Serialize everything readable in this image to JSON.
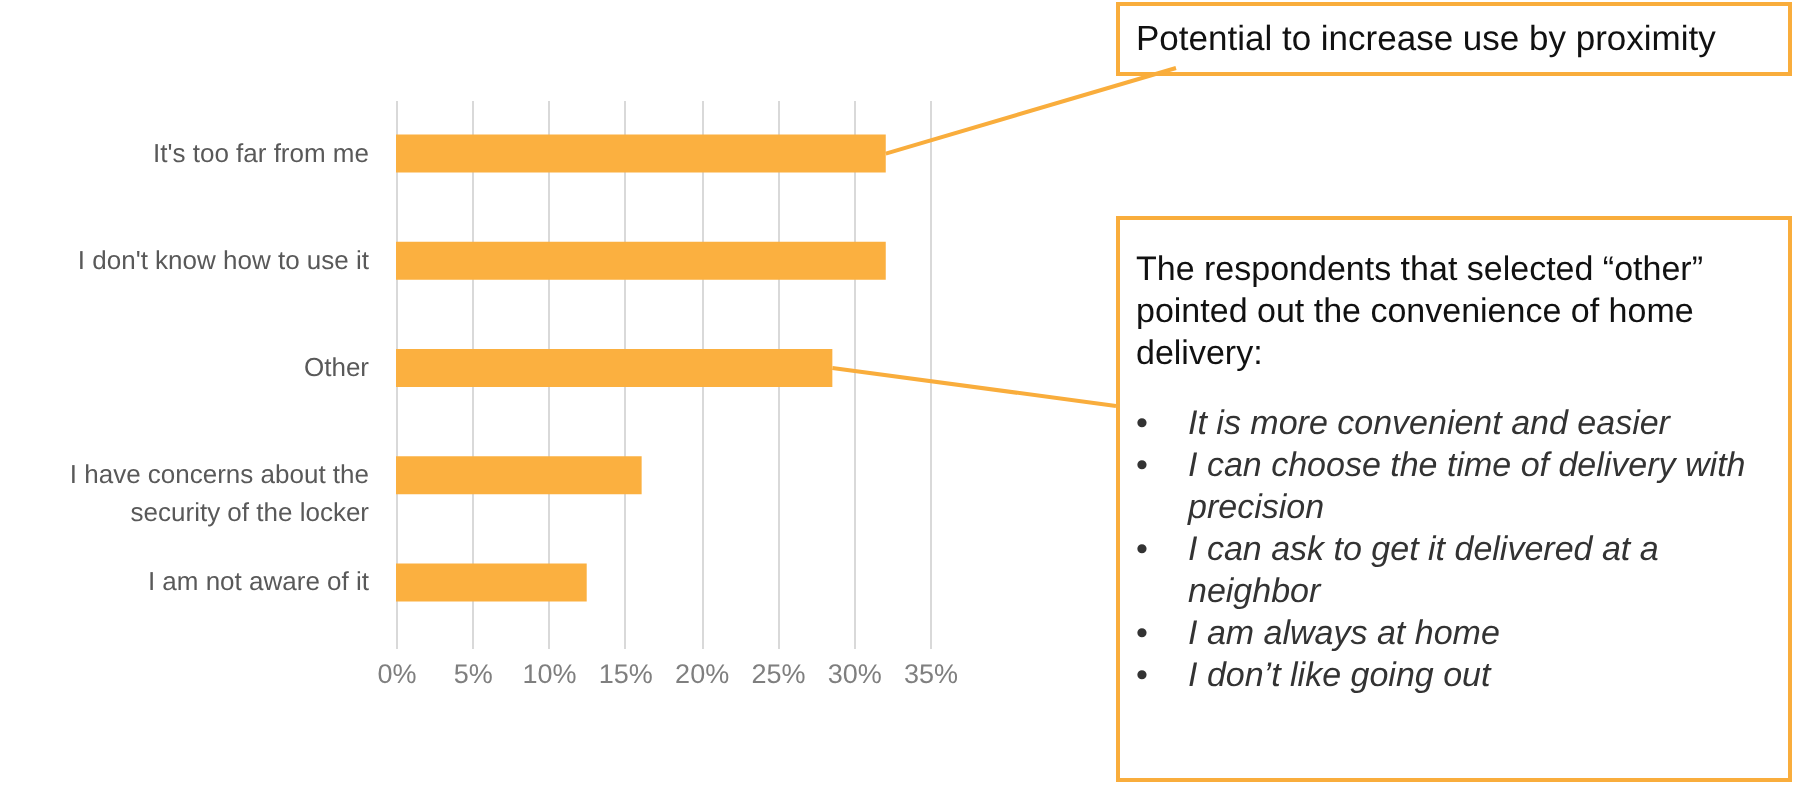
{
  "chart_data": {
    "type": "bar",
    "orientation": "horizontal",
    "categories": [
      "It's too far from me",
      "I don't know how to use it",
      "Other",
      "I have concerns about the security of the locker",
      "I am not aware of it"
    ],
    "values": [
      32.1,
      32.1,
      28.6,
      16.1,
      12.5
    ],
    "color": "#fbb040",
    "xlim": [
      0,
      35
    ],
    "xticks": [
      {
        "value": 0,
        "label": "0%"
      },
      {
        "value": 5,
        "label": "5%"
      },
      {
        "value": 10,
        "label": "10%"
      },
      {
        "value": 15,
        "label": "15%"
      },
      {
        "value": 20,
        "label": "20%"
      },
      {
        "value": 25,
        "label": "25%"
      },
      {
        "value": 30,
        "label": "30%"
      },
      {
        "value": 35,
        "label": "35%"
      }
    ],
    "grid": "x",
    "annotations": [
      {
        "text": "Potential to increase use by proximity",
        "x": 32.1,
        "y": "It's too far from me"
      },
      {
        "text": "The respondents that selected “other” pointed out the convenience of home delivery:",
        "x": 28.6,
        "y": "Other"
      },
      "• It is more convenient and easier",
      "• I can choose the time of delivery with precision",
      "• I can ask to get it delivered at a neighbor",
      "• I am always at home",
      "• I don’t like going out"
    ]
  }
}
